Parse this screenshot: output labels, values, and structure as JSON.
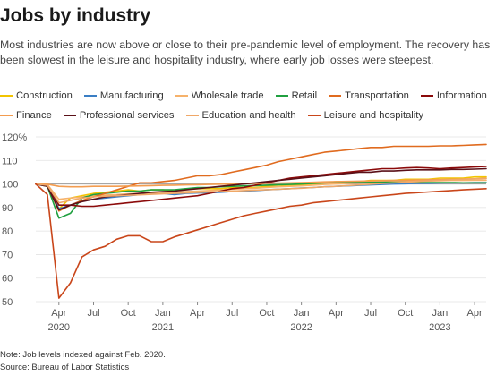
{
  "header": {
    "title": "Jobs by industry",
    "subtitle": "Most industries are now above or close to their pre-pandemic level of employment. The recovery has been slowest in the leisure and hospitality industry, where early job losses were steepest."
  },
  "footer": {
    "note": "Note: Job levels indexed against Feb. 2020.",
    "source": "Source: Bureau of Labor Statistics"
  },
  "chart_data": {
    "type": "line",
    "title": "Jobs by industry",
    "xlabel": "",
    "ylabel": "",
    "ylim": [
      50,
      120
    ],
    "yticks": [
      50,
      60,
      70,
      80,
      90,
      100,
      110,
      120
    ],
    "ytick_labels": [
      "50",
      "60",
      "70",
      "80",
      "90",
      "100",
      "110",
      "120%"
    ],
    "month_ticks": [
      {
        "month": "2020-04",
        "label": "Apr"
      },
      {
        "month": "2020-07",
        "label": "Jul"
      },
      {
        "month": "2020-10",
        "label": "Oct"
      },
      {
        "month": "2021-01",
        "label": "Jan"
      },
      {
        "month": "2021-04",
        "label": "Apr"
      },
      {
        "month": "2021-07",
        "label": "Jul"
      },
      {
        "month": "2021-10",
        "label": "Oct"
      },
      {
        "month": "2022-01",
        "label": "Jan"
      },
      {
        "month": "2022-04",
        "label": "Apr"
      },
      {
        "month": "2022-07",
        "label": "Jul"
      },
      {
        "month": "2022-10",
        "label": "Oct"
      },
      {
        "month": "2023-01",
        "label": "Jan"
      },
      {
        "month": "2023-04",
        "label": "Apr"
      }
    ],
    "year_labels": [
      {
        "month": "2020-04",
        "label": "2020"
      },
      {
        "month": "2021-01",
        "label": "2021"
      },
      {
        "month": "2022-01",
        "label": "2022"
      },
      {
        "month": "2023-01",
        "label": "2023"
      }
    ],
    "grid": true,
    "legend_position": "top",
    "x": [
      "2020-02",
      "2020-03",
      "2020-04",
      "2020-05",
      "2020-06",
      "2020-07",
      "2020-08",
      "2020-09",
      "2020-10",
      "2020-11",
      "2020-12",
      "2021-01",
      "2021-02",
      "2021-03",
      "2021-04",
      "2021-05",
      "2021-06",
      "2021-07",
      "2021-08",
      "2021-09",
      "2021-10",
      "2021-11",
      "2021-12",
      "2022-01",
      "2022-02",
      "2022-03",
      "2022-04",
      "2022-05",
      "2022-06",
      "2022-07",
      "2022-08",
      "2022-09",
      "2022-10",
      "2022-11",
      "2022-12",
      "2023-01",
      "2023-02",
      "2023-03",
      "2023-04",
      "2023-05"
    ],
    "series": [
      {
        "name": "Construction",
        "color": "#f2c400",
        "values": [
          100,
          99.5,
          89.5,
          94,
          95,
          96,
          96.5,
          97,
          97.5,
          97,
          97.5,
          97.5,
          97,
          98,
          98,
          98,
          98,
          98.5,
          98.5,
          98.5,
          99,
          99,
          99.5,
          99.5,
          100,
          100.5,
          101,
          101,
          101,
          101.5,
          101.5,
          101.5,
          102,
          102,
          102,
          102.5,
          102.5,
          102.5,
          103,
          103
        ]
      },
      {
        "name": "Manufacturing",
        "color": "#3a7ec4",
        "values": [
          100,
          99.8,
          89.5,
          91,
          93,
          93.5,
          94,
          94.5,
          95,
          95.5,
          96,
          96,
          95.5,
          96,
          96.2,
          96.3,
          96.5,
          96.8,
          97,
          97.2,
          97.5,
          97.8,
          98,
          98.3,
          98.5,
          98.8,
          99,
          99.2,
          99.4,
          99.6,
          99.8,
          100,
          100.1,
          100.2,
          100.3,
          100.4,
          100.5,
          100.5,
          100.6,
          100.6
        ]
      },
      {
        "name": "Wholesale trade",
        "color": "#f6b26b",
        "values": [
          100,
          99.8,
          93.5,
          94,
          94.5,
          95,
          95.3,
          95.5,
          95.8,
          96,
          96.2,
          96.4,
          96.5,
          96.8,
          97,
          97.2,
          97.5,
          97.8,
          98,
          98.2,
          98.5,
          98.8,
          99,
          99.2,
          99.5,
          99.8,
          100,
          100.2,
          100.4,
          100.6,
          100.8,
          101,
          101.1,
          101.2,
          101.3,
          101.4,
          101.5,
          101.5,
          101.6,
          101.6
        ]
      },
      {
        "name": "Retail",
        "color": "#20a040",
        "values": [
          100,
          99,
          85.5,
          87.5,
          94,
          95.5,
          96,
          96.5,
          97,
          97,
          97.5,
          97.5,
          97.5,
          98,
          98.5,
          98.5,
          98.8,
          99,
          99.2,
          99.3,
          99.5,
          99.7,
          99.8,
          100,
          100.2,
          100.5,
          100.6,
          100.7,
          100.8,
          100.8,
          100.8,
          100.7,
          100.7,
          100.6,
          100.6,
          100.6,
          100.6,
          100.5,
          100.5,
          100.5
        ]
      },
      {
        "name": "Transportation",
        "color": "#e06b1f",
        "values": [
          100,
          99.5,
          88.5,
          91,
          93,
          94.5,
          96,
          97.5,
          99,
          100.5,
          100.5,
          101,
          101.5,
          102.5,
          103.5,
          103.5,
          104,
          105,
          106,
          107,
          108,
          109.5,
          110.5,
          111.5,
          112.5,
          113.5,
          114,
          114.5,
          115,
          115.5,
          115.5,
          116,
          116,
          116,
          116,
          116.2,
          116.2,
          116.4,
          116.6,
          116.8
        ]
      },
      {
        "name": "Information",
        "color": "#8b0a0a",
        "values": [
          100,
          99.5,
          91,
          91,
          90.5,
          90.5,
          91,
          91.5,
          92,
          92.5,
          93,
          93.5,
          94,
          94.5,
          95,
          96,
          97,
          98,
          98.5,
          99.5,
          100.5,
          101.5,
          102.5,
          103,
          103.5,
          104,
          104.5,
          105,
          105.5,
          106,
          106.5,
          106.5,
          106.8,
          107,
          106.8,
          106.5,
          106.8,
          107,
          107.2,
          107.5
        ]
      },
      {
        "name": "Finance",
        "color": "#f39c4f",
        "values": [
          100,
          99.9,
          99,
          98.8,
          98.8,
          99,
          99,
          99,
          99.1,
          99.2,
          99.3,
          99.4,
          99.5,
          99.6,
          99.7,
          99.8,
          99.9,
          100,
          100.1,
          100.2,
          100.3,
          100.4,
          100.5,
          100.6,
          100.7,
          100.9,
          101,
          101.1,
          101.2,
          101.3,
          101.4,
          101.5,
          101.6,
          101.7,
          101.8,
          101.9,
          102,
          102.1,
          102.2,
          102.3
        ]
      },
      {
        "name": "Professional services",
        "color": "#5a1018",
        "values": [
          100,
          99,
          89,
          91,
          92.5,
          93.5,
          94.5,
          95,
          95.5,
          96,
          96.5,
          96.8,
          97,
          97.5,
          98,
          98.5,
          99,
          99.5,
          100,
          100.5,
          101,
          101.5,
          102,
          102.5,
          103,
          103.5,
          104,
          104.5,
          105,
          105,
          105.5,
          105.5,
          105.8,
          106,
          106,
          106,
          106.2,
          106.2,
          106.3,
          106.5
        ]
      },
      {
        "name": "Education and health",
        "color": "#f0a868",
        "values": [
          100,
          99.5,
          92,
          93,
          94,
          94.5,
          94.8,
          95,
          95.2,
          95.4,
          95.6,
          95.8,
          96,
          96.2,
          96.4,
          96.6,
          96.8,
          97,
          97.2,
          97.4,
          97.6,
          97.8,
          98,
          98.2,
          98.5,
          98.8,
          99,
          99.3,
          99.6,
          99.9,
          100.2,
          100.5,
          100.8,
          101,
          101.3,
          101.6,
          101.8,
          102,
          102.2,
          102.5
        ]
      },
      {
        "name": "Leisure and hospitality",
        "color": "#c9461a",
        "values": [
          100,
          95.5,
          51.5,
          58,
          69,
          72,
          73.5,
          76.5,
          78,
          78,
          75.5,
          75.5,
          77.5,
          79,
          80.5,
          82,
          83.5,
          85,
          86.5,
          87.5,
          88.5,
          89.5,
          90.5,
          91,
          92,
          92.5,
          93,
          93.5,
          94,
          94.5,
          95,
          95.5,
          96,
          96.3,
          96.6,
          96.9,
          97.2,
          97.5,
          97.8,
          98
        ]
      }
    ]
  }
}
